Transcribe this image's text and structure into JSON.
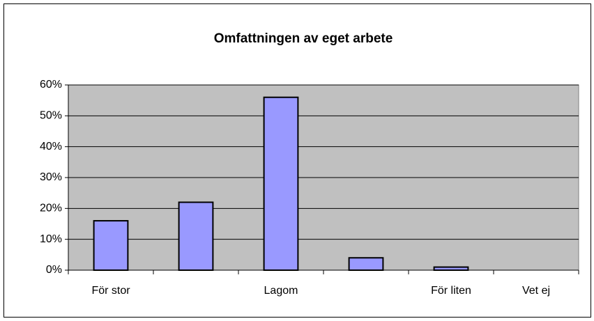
{
  "chart_data": {
    "type": "bar",
    "title": "Omfattningen av eget arbete",
    "categories": [
      "För stor",
      null,
      "Lagom",
      null,
      "För liten",
      "Vet ej"
    ],
    "values": [
      16,
      22,
      56,
      4,
      1,
      0
    ],
    "color": "#9999ff",
    "ylim": [
      0,
      60
    ],
    "yticks": [
      {
        "value": 0,
        "label": "0%"
      },
      {
        "value": 10,
        "label": "10%"
      },
      {
        "value": 20,
        "label": "20%"
      },
      {
        "value": 30,
        "label": "30%"
      },
      {
        "value": 40,
        "label": "40%"
      },
      {
        "value": 50,
        "label": "50%"
      },
      {
        "value": 60,
        "label": "60%"
      }
    ],
    "grid": true
  }
}
